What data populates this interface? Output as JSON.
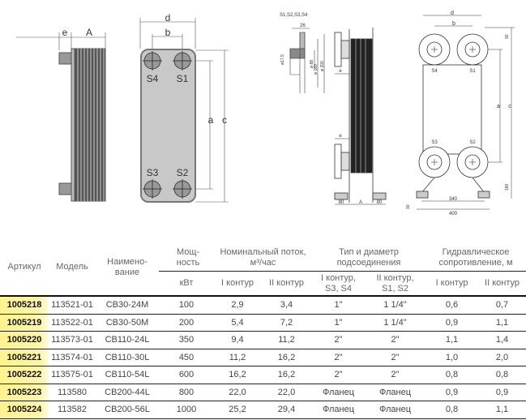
{
  "drawing_small": {
    "e": "e",
    "A": "A",
    "d": "d",
    "b": "b",
    "a": "a",
    "c": "c",
    "ports": [
      "S4",
      "S1",
      "S3",
      "S2"
    ]
  },
  "drawing_large": {
    "detail_title": "S1,S2,S3,S4",
    "detail_26": "26",
    "detail_d17": "ø17,5",
    "detail_d88": "ø 88",
    "detail_d160": "ø 160",
    "detail_d200": "ø 200",
    "e_top": "e",
    "e_bottom": "e",
    "foot_left": "80",
    "A": "A",
    "foot_right": "80",
    "d": "d",
    "b": "b",
    "a": "a",
    "c": "c",
    "top_90": "90",
    "bottom_180": "180",
    "foot_30": "30",
    "w340": "340",
    "w400": "400",
    "ports": [
      "S4",
      "S1",
      "S3",
      "S2"
    ]
  },
  "table": {
    "headers": {
      "article": "Артикул",
      "model": "Модель",
      "name": "Наимено-вание",
      "power": "Мощ-ность",
      "flow": "Номинальный поток, м³/час",
      "connection": "Тип и диаметр подсоединения",
      "resistance": "Гидравлическое сопротивление, м"
    },
    "subheaders": {
      "power_unit": "кВт",
      "flow1": "I контур",
      "flow2": "II контур",
      "conn1": "I контур, S3, S4",
      "conn2": "II контур, S1, S2",
      "res1": "I контур",
      "res2": "II контур"
    },
    "rows": [
      [
        "1005218",
        "113521-01",
        "CB30-24M",
        "100",
        "2,9",
        "3,4",
        "1\"",
        "1 1/4\"",
        "0,6",
        "0,7"
      ],
      [
        "1005219",
        "113522-01",
        "CB30-50M",
        "200",
        "5,4",
        "7,2",
        "1\"",
        "1 1/4\"",
        "0,9",
        "1,1"
      ],
      [
        "1005220",
        "113573-01",
        "CB110-24L",
        "350",
        "9,4",
        "11,2",
        "2\"",
        "2\"",
        "1,1",
        "1,4"
      ],
      [
        "1005221",
        "113574-01",
        "CB110-30L",
        "450",
        "11,2",
        "16,2",
        "2\"",
        "2\"",
        "1,0",
        "2,0"
      ],
      [
        "1005222",
        "113575-01",
        "CB110-54L",
        "600",
        "16,2",
        "16,2",
        "2\"",
        "2\"",
        "0,8",
        "0,8"
      ],
      [
        "1005223",
        "113580",
        "CB200-44L",
        "800",
        "22,0",
        "22,0",
        "Фланец",
        "Фланец",
        "0,9",
        "0,9"
      ],
      [
        "1005224",
        "113582",
        "CB200-56L",
        "1000",
        "25,2",
        "29,4",
        "Фланец",
        "Фланец",
        "0,8",
        "1,1"
      ]
    ]
  }
}
